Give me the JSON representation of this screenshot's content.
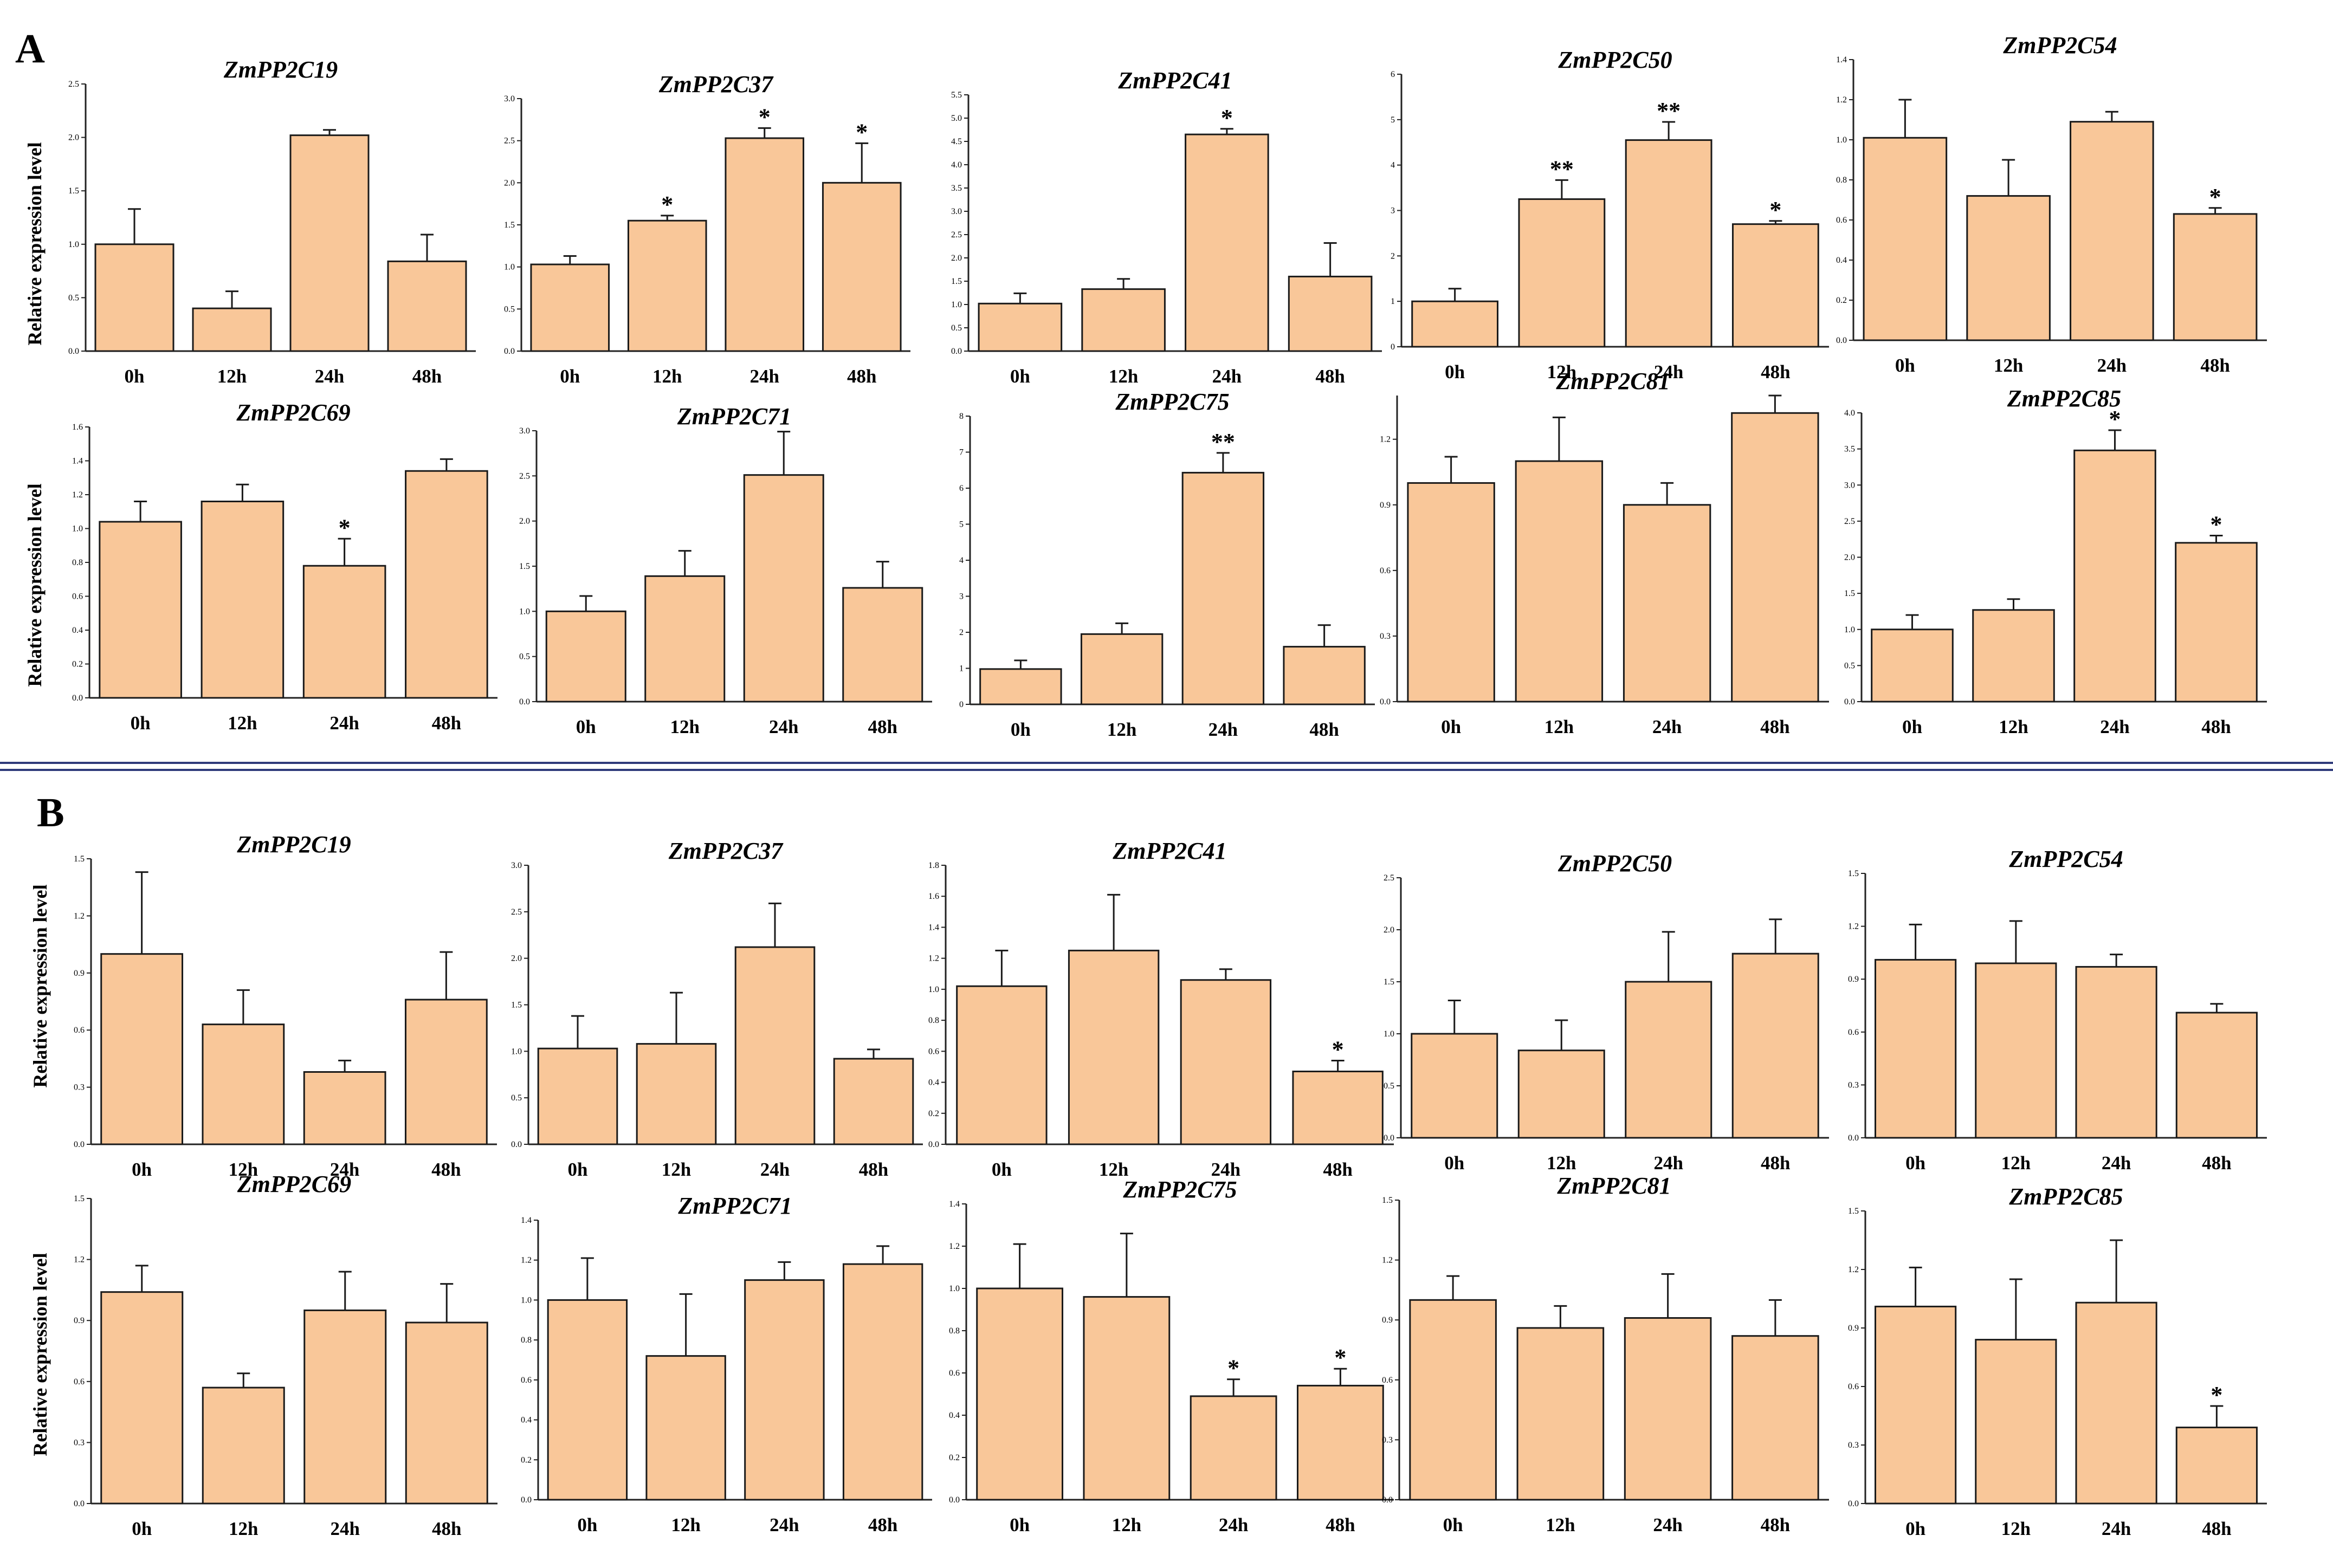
{
  "panels": [
    {
      "label": "A",
      "ylabel": "Relative expression level"
    },
    {
      "label": "B",
      "ylabel": "Relative expression level"
    }
  ],
  "style": {
    "bar_fill": "#F9C799",
    "bar_stroke": "#1a1a1a",
    "divider": "#2E3A7A"
  },
  "chart_data": [
    {
      "panel": "A",
      "type": "bar",
      "title": "ZmPP2C19",
      "categories": [
        "0h",
        "12h",
        "24h",
        "48h"
      ],
      "values": [
        1.0,
        0.4,
        2.02,
        0.84
      ],
      "errors": [
        0.33,
        0.16,
        0.05,
        0.25
      ],
      "sig": [
        "",
        "",
        "",
        ""
      ],
      "ylim": [
        0,
        2.5
      ],
      "yticks": [
        "0.0",
        "0.5",
        "1.0",
        "1.5",
        "2.0",
        "2.5"
      ]
    },
    {
      "panel": "A",
      "type": "bar",
      "title": "ZmPP2C37",
      "categories": [
        "0h",
        "12h",
        "24h",
        "48h"
      ],
      "values": [
        1.03,
        1.55,
        2.53,
        2.0
      ],
      "errors": [
        0.1,
        0.06,
        0.12,
        0.47
      ],
      "sig": [
        "",
        "*",
        "*",
        "*"
      ],
      "ylim": [
        0,
        3.0
      ],
      "yticks": [
        "0.0",
        "0.5",
        "1.0",
        "1.5",
        "2.0",
        "2.5",
        "3.0"
      ]
    },
    {
      "panel": "A",
      "type": "bar",
      "title": "ZmPP2C41",
      "categories": [
        "0h",
        "12h",
        "24h",
        "48h"
      ],
      "values": [
        1.02,
        1.33,
        4.65,
        1.6
      ],
      "errors": [
        0.22,
        0.22,
        0.12,
        0.72
      ],
      "sig": [
        "",
        "",
        "*",
        ""
      ],
      "ylim": [
        0,
        5.5
      ],
      "yticks": [
        "0.0",
        "0.5",
        "1.0",
        "1.5",
        "2.0",
        "2.5",
        "3.0",
        "3.5",
        "4.0",
        "4.5",
        "5.0",
        "5.5"
      ]
    },
    {
      "panel": "A",
      "type": "bar",
      "title": "ZmPP2C50",
      "categories": [
        "0h",
        "12h",
        "24h",
        "48h"
      ],
      "values": [
        1.0,
        3.25,
        4.55,
        2.7
      ],
      "errors": [
        0.28,
        0.42,
        0.4,
        0.07
      ],
      "sig": [
        "",
        "**",
        "**",
        "*"
      ],
      "ylim": [
        0,
        6
      ],
      "yticks": [
        "0",
        "1",
        "2",
        "3",
        "4",
        "5",
        "6"
      ]
    },
    {
      "panel": "A",
      "type": "bar",
      "title": "ZmPP2C54",
      "categories": [
        "0h",
        "12h",
        "24h",
        "48h"
      ],
      "values": [
        1.01,
        0.72,
        1.09,
        0.63
      ],
      "errors": [
        0.19,
        0.18,
        0.05,
        0.03
      ],
      "sig": [
        "",
        "",
        "",
        "*"
      ],
      "ylim": [
        0,
        1.4
      ],
      "yticks": [
        "0.0",
        "0.2",
        "0.4",
        "0.6",
        "0.8",
        "1.0",
        "1.2",
        "1.4"
      ]
    },
    {
      "panel": "A",
      "type": "bar",
      "title": "ZmPP2C69",
      "categories": [
        "0h",
        "12h",
        "24h",
        "48h"
      ],
      "values": [
        1.04,
        1.16,
        0.78,
        1.34
      ],
      "errors": [
        0.12,
        0.1,
        0.16,
        0.07
      ],
      "sig": [
        "",
        "",
        "*",
        ""
      ],
      "ylim": [
        0,
        1.6
      ],
      "yticks": [
        "0.0",
        "0.2",
        "0.4",
        "0.6",
        "0.8",
        "1.0",
        "1.2",
        "1.4",
        "1.6"
      ]
    },
    {
      "panel": "A",
      "type": "bar",
      "title": "ZmPP2C71",
      "categories": [
        "0h",
        "12h",
        "24h",
        "48h"
      ],
      "values": [
        1.0,
        1.39,
        2.51,
        1.26
      ],
      "errors": [
        0.17,
        0.28,
        0.48,
        0.29
      ],
      "sig": [
        "",
        "",
        "",
        ""
      ],
      "ylim": [
        0,
        3.0
      ],
      "yticks": [
        "0.0",
        "0.5",
        "1.0",
        "1.5",
        "2.0",
        "2.5",
        "3.0"
      ]
    },
    {
      "panel": "A",
      "type": "bar",
      "title": "ZmPP2C75",
      "categories": [
        "0h",
        "12h",
        "24h",
        "48h"
      ],
      "values": [
        0.98,
        1.95,
        6.43,
        1.6
      ],
      "errors": [
        0.24,
        0.3,
        0.55,
        0.6
      ],
      "sig": [
        "",
        "",
        "**",
        ""
      ],
      "ylim": [
        0,
        8
      ],
      "yticks": [
        "0",
        "1",
        "2",
        "3",
        "4",
        "5",
        "6",
        "7",
        "8"
      ]
    },
    {
      "panel": "A",
      "type": "bar",
      "title": "ZmPP2C81",
      "categories": [
        "0h",
        "12h",
        "24h",
        "48h"
      ],
      "values": [
        1.0,
        1.1,
        0.9,
        1.32
      ],
      "errors": [
        0.12,
        0.2,
        0.1,
        0.08
      ],
      "sig": [
        "",
        "",
        "",
        ""
      ],
      "ylim": [
        0,
        1.4
      ],
      "yticks": [
        "0.0",
        "0.3",
        "0.6",
        "0.9",
        "1.2"
      ]
    },
    {
      "panel": "A",
      "type": "bar",
      "title": "ZmPP2C85",
      "categories": [
        "0h",
        "12h",
        "24h",
        "48h"
      ],
      "values": [
        1.0,
        1.27,
        3.48,
        2.2
      ],
      "errors": [
        0.2,
        0.15,
        0.28,
        0.1
      ],
      "sig": [
        "",
        "",
        "*",
        "*"
      ],
      "ylim": [
        0,
        4.0
      ],
      "yticks": [
        "0.0",
        "0.5",
        "1.0",
        "1.5",
        "2.0",
        "2.5",
        "3.0",
        "3.5",
        "4.0"
      ]
    },
    {
      "panel": "B",
      "type": "bar",
      "title": "ZmPP2C19",
      "categories": [
        "0h",
        "12h",
        "24h",
        "48h"
      ],
      "values": [
        1.0,
        0.63,
        0.38,
        0.76
      ],
      "errors": [
        0.43,
        0.18,
        0.06,
        0.25
      ],
      "sig": [
        "",
        "",
        "",
        ""
      ],
      "ylim": [
        0,
        1.5
      ],
      "yticks": [
        "0.0",
        "0.3",
        "0.6",
        "0.9",
        "1.2",
        "1.5"
      ]
    },
    {
      "panel": "B",
      "type": "bar",
      "title": "ZmPP2C37",
      "categories": [
        "0h",
        "12h",
        "24h",
        "48h"
      ],
      "values": [
        1.03,
        1.08,
        2.12,
        0.92
      ],
      "errors": [
        0.35,
        0.55,
        0.47,
        0.1
      ],
      "sig": [
        "",
        "",
        "",
        ""
      ],
      "ylim": [
        0,
        3.0
      ],
      "yticks": [
        "0.0",
        "0.5",
        "1.0",
        "1.5",
        "2.0",
        "2.5",
        "3.0"
      ]
    },
    {
      "panel": "B",
      "type": "bar",
      "title": "ZmPP2C41",
      "categories": [
        "0h",
        "12h",
        "24h",
        "48h"
      ],
      "values": [
        1.02,
        1.25,
        1.06,
        0.47
      ],
      "errors": [
        0.23,
        0.36,
        0.07,
        0.07
      ],
      "sig": [
        "",
        "",
        "",
        "*"
      ],
      "ylim": [
        0,
        1.8
      ],
      "yticks": [
        "0.0",
        "0.2",
        "0.4",
        "0.6",
        "0.8",
        "1.0",
        "1.2",
        "1.4",
        "1.6",
        "1.8"
      ]
    },
    {
      "panel": "B",
      "type": "bar",
      "title": "ZmPP2C50",
      "categories": [
        "0h",
        "12h",
        "24h",
        "48h"
      ],
      "values": [
        1.0,
        0.84,
        1.5,
        1.77
      ],
      "errors": [
        0.32,
        0.29,
        0.48,
        0.33
      ],
      "sig": [
        "",
        "",
        "",
        ""
      ],
      "ylim": [
        0,
        2.5
      ],
      "yticks": [
        "0.0",
        "0.5",
        "1.0",
        "1.5",
        "2.0",
        "2.5"
      ]
    },
    {
      "panel": "B",
      "type": "bar",
      "title": "ZmPP2C54",
      "categories": [
        "0h",
        "12h",
        "24h",
        "48h"
      ],
      "values": [
        1.01,
        0.99,
        0.97,
        0.71
      ],
      "errors": [
        0.2,
        0.24,
        0.07,
        0.05
      ],
      "sig": [
        "",
        "",
        "",
        ""
      ],
      "ylim": [
        0,
        1.5
      ],
      "yticks": [
        "0.0",
        "0.3",
        "0.6",
        "0.9",
        "1.2",
        "1.5"
      ]
    },
    {
      "panel": "B",
      "type": "bar",
      "title": "ZmPP2C69",
      "categories": [
        "0h",
        "12h",
        "24h",
        "48h"
      ],
      "values": [
        1.04,
        0.57,
        0.95,
        0.89
      ],
      "errors": [
        0.13,
        0.07,
        0.19,
        0.19
      ],
      "sig": [
        "",
        "",
        "",
        ""
      ],
      "ylim": [
        0,
        1.5
      ],
      "yticks": [
        "0.0",
        "0.3",
        "0.6",
        "0.9",
        "1.2",
        "1.5"
      ]
    },
    {
      "panel": "B",
      "type": "bar",
      "title": "ZmPP2C71",
      "categories": [
        "0h",
        "12h",
        "24h",
        "48h"
      ],
      "values": [
        1.0,
        0.72,
        1.1,
        1.18
      ],
      "errors": [
        0.21,
        0.31,
        0.09,
        0.09
      ],
      "sig": [
        "",
        "",
        "",
        ""
      ],
      "ylim": [
        0,
        1.4
      ],
      "yticks": [
        "0.0",
        "0.2",
        "0.4",
        "0.6",
        "0.8",
        "1.0",
        "1.2",
        "1.4"
      ]
    },
    {
      "panel": "B",
      "type": "bar",
      "title": "ZmPP2C75",
      "categories": [
        "0h",
        "12h",
        "24h",
        "48h"
      ],
      "values": [
        1.0,
        0.96,
        0.49,
        0.54
      ],
      "errors": [
        0.21,
        0.3,
        0.08,
        0.08
      ],
      "sig": [
        "",
        "",
        "*",
        "*"
      ],
      "ylim": [
        0,
        1.4
      ],
      "yticks": [
        "0.0",
        "0.2",
        "0.4",
        "0.6",
        "0.8",
        "1.0",
        "1.2",
        "1.4"
      ]
    },
    {
      "panel": "B",
      "type": "bar",
      "title": "ZmPP2C81",
      "categories": [
        "0h",
        "12h",
        "24h",
        "48h"
      ],
      "values": [
        1.0,
        0.86,
        0.91,
        0.82
      ],
      "errors": [
        0.12,
        0.11,
        0.22,
        0.18
      ],
      "sig": [
        "",
        "",
        "",
        ""
      ],
      "ylim": [
        0,
        1.5
      ],
      "yticks": [
        "0.0",
        "0.3",
        "0.6",
        "0.9",
        "1.2",
        "1.5"
      ]
    },
    {
      "panel": "B",
      "type": "bar",
      "title": "ZmPP2C85",
      "categories": [
        "0h",
        "12h",
        "24h",
        "48h"
      ],
      "values": [
        1.01,
        0.84,
        1.03,
        0.39
      ],
      "errors": [
        0.2,
        0.31,
        0.32,
        0.11
      ],
      "sig": [
        "",
        "",
        "",
        "*"
      ],
      "ylim": [
        0,
        1.5
      ],
      "yticks": [
        "0.0",
        "0.3",
        "0.6",
        "0.9",
        "1.2",
        "1.5"
      ]
    }
  ]
}
